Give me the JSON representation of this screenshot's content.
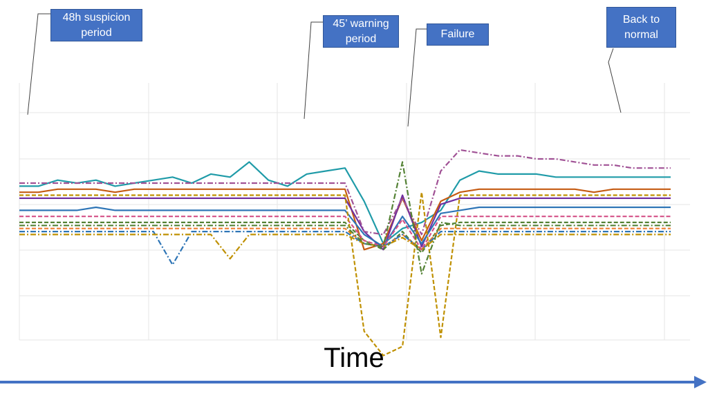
{
  "chart_data": {
    "type": "line",
    "title": "",
    "xlabel": "Time",
    "ylabel": "",
    "grid": true,
    "legend": "none",
    "phases": [
      {
        "name": "suspicion",
        "label": "48h suspicion\nperiod"
      },
      {
        "name": "warning",
        "label": "45’ warning\nperiod"
      },
      {
        "name": "failure",
        "label": "Failure"
      },
      {
        "name": "normal",
        "label": "Back to\nnormal"
      }
    ],
    "series_colors": [
      "#1f9ba8",
      "#c55a11",
      "#7030a0",
      "#2e75b6",
      "#70ad47",
      "#bf9000",
      "#a05195",
      "#d45087",
      "#548235",
      "#ed7d31"
    ],
    "series": [
      {
        "style": "solid",
        "color": "#1f9ba8",
        "values": [
          0.0,
          0.0,
          0.2,
          0.1,
          0.2,
          0.0,
          0.1,
          0.2,
          0.3,
          0.1,
          0.4,
          0.3,
          0.8,
          0.2,
          0.0,
          0.4,
          0.5,
          0.6,
          -0.5,
          -1.9,
          -1.4,
          -1.2,
          -0.8,
          0.2,
          0.5,
          0.4,
          0.4,
          0.4,
          0.3,
          0.3,
          0.3,
          0.3,
          0.3,
          0.3,
          0.3
        ]
      },
      {
        "style": "solid",
        "color": "#c55a11",
        "values": [
          -0.2,
          -0.2,
          -0.1,
          -0.1,
          -0.1,
          -0.2,
          -0.1,
          -0.1,
          -0.1,
          -0.1,
          -0.1,
          -0.1,
          -0.1,
          -0.1,
          -0.1,
          -0.1,
          -0.1,
          -0.1,
          -2.1,
          -1.9,
          -0.4,
          -1.8,
          -0.5,
          -0.2,
          -0.1,
          -0.1,
          -0.1,
          -0.1,
          -0.1,
          -0.1,
          -0.2,
          -0.1,
          -0.1,
          -0.1,
          -0.1
        ]
      },
      {
        "style": "solid",
        "color": "#7030a0",
        "values": [
          -0.4,
          -0.4,
          -0.4,
          -0.4,
          -0.4,
          -0.4,
          -0.4,
          -0.4,
          -0.4,
          -0.4,
          -0.4,
          -0.4,
          -0.4,
          -0.4,
          -0.4,
          -0.4,
          -0.4,
          -0.4,
          -1.5,
          -2.1,
          -0.3,
          -2.0,
          -0.6,
          -0.4,
          -0.4,
          -0.4,
          -0.4,
          -0.4,
          -0.4,
          -0.4,
          -0.4,
          -0.4,
          -0.4,
          -0.4,
          -0.4
        ]
      },
      {
        "style": "solid",
        "color": "#2e75b6",
        "values": [
          -0.8,
          -0.8,
          -0.8,
          -0.8,
          -0.7,
          -0.8,
          -0.8,
          -0.8,
          -0.8,
          -0.8,
          -0.8,
          -0.8,
          -0.8,
          -0.8,
          -0.8,
          -0.8,
          -0.8,
          -0.8,
          -1.6,
          -2.0,
          -1.0,
          -1.9,
          -0.9,
          -0.8,
          -0.7,
          -0.7,
          -0.7,
          -0.7,
          -0.7,
          -0.7,
          -0.7,
          -0.7,
          -0.7,
          -0.7,
          -0.7
        ]
      },
      {
        "style": "dash",
        "color": "#548235",
        "values": [
          -1.2,
          -1.2,
          -1.2,
          -1.2,
          -1.2,
          -1.2,
          -1.2,
          -1.2,
          -1.2,
          -1.2,
          -1.2,
          -1.2,
          -1.2,
          -1.2,
          -1.2,
          -1.2,
          -1.2,
          -1.2,
          -1.8,
          -2.1,
          -1.5,
          -2.2,
          -1.3,
          -1.2,
          -1.2,
          -1.2,
          -1.2,
          -1.2,
          -1.2,
          -1.2,
          -1.2,
          -1.2,
          -1.2,
          -1.2,
          -1.2
        ]
      },
      {
        "style": "dash",
        "color": "#ed7d31",
        "values": [
          -1.4,
          -1.4,
          -1.4,
          -1.4,
          -1.4,
          -1.4,
          -1.4,
          -1.4,
          -1.4,
          -1.4,
          -1.4,
          -1.4,
          -1.4,
          -1.4,
          -1.4,
          -1.4,
          -1.4,
          -1.4,
          -1.9,
          -2.0,
          -1.6,
          -2.1,
          -1.4,
          -1.4,
          -1.4,
          -1.4,
          -1.4,
          -1.4,
          -1.4,
          -1.4,
          -1.4,
          -1.4,
          -1.4,
          -1.4,
          -1.4
        ]
      },
      {
        "style": "dashdot",
        "color": "#2e75b6",
        "values": [
          -1.5,
          -1.5,
          -1.5,
          -1.5,
          -1.5,
          -1.5,
          -1.5,
          -1.5,
          -2.6,
          -1.5,
          -1.5,
          -1.5,
          -1.5,
          -1.5,
          -1.5,
          -1.5,
          -1.5,
          -1.5,
          -1.9,
          -2.0,
          -1.6,
          -2.1,
          -1.5,
          -1.5,
          -1.5,
          -1.5,
          -1.5,
          -1.5,
          -1.5,
          -1.5,
          -1.5,
          -1.5,
          -1.5,
          -1.5,
          -1.5
        ]
      },
      {
        "style": "dashdot",
        "color": "#bf9000",
        "values": [
          -1.6,
          -1.6,
          -1.6,
          -1.6,
          -1.6,
          -1.6,
          -1.6,
          -1.6,
          -1.6,
          -1.6,
          -1.6,
          -2.4,
          -1.6,
          -1.6,
          -1.6,
          -1.6,
          -1.6,
          -1.6,
          -1.9,
          -2.0,
          -1.7,
          -2.1,
          -1.6,
          -1.6,
          -1.6,
          -1.6,
          -1.6,
          -1.6,
          -1.6,
          -1.6,
          -1.6,
          -1.6,
          -1.6,
          -1.6,
          -1.6
        ]
      },
      {
        "style": "dashdot",
        "color": "#a05195",
        "values": [
          0.1,
          0.1,
          0.1,
          0.1,
          0.1,
          0.1,
          0.1,
          0.1,
          0.1,
          0.1,
          0.1,
          0.1,
          0.1,
          0.1,
          0.1,
          0.1,
          0.1,
          0.1,
          -1.5,
          -1.6,
          -0.4,
          -1.6,
          0.5,
          1.2,
          1.1,
          1.0,
          1.0,
          0.9,
          0.9,
          0.8,
          0.7,
          0.7,
          0.6,
          0.6,
          0.6
        ]
      },
      {
        "style": "dash",
        "color": "#d45087",
        "values": [
          -1.0,
          -1.0,
          -1.0,
          -1.0,
          -1.0,
          -1.0,
          -1.0,
          -1.0,
          -1.0,
          -1.0,
          -1.0,
          -1.0,
          -1.0,
          -1.0,
          -1.0,
          -1.0,
          -1.0,
          -1.0,
          -1.8,
          -2.0,
          -1.1,
          -2.1,
          -1.0,
          -1.0,
          -1.0,
          -1.0,
          -1.0,
          -1.0,
          -1.0,
          -1.0,
          -1.0,
          -1.0,
          -1.0,
          -1.0,
          -1.0
        ]
      },
      {
        "style": "dash",
        "color": "#bf9000",
        "values": [
          -0.3,
          -0.3,
          -0.3,
          -0.3,
          -0.3,
          -0.3,
          -0.3,
          -0.3,
          -0.3,
          -0.3,
          -0.3,
          -0.3,
          -0.3,
          -0.3,
          -0.3,
          -0.3,
          -0.3,
          -0.3,
          -4.8,
          -5.6,
          -5.3,
          -0.2,
          -5.0,
          -0.3,
          -0.3,
          -0.3,
          -0.3,
          -0.3,
          -0.3,
          -0.3,
          -0.3,
          -0.3,
          -0.3,
          -0.3,
          -0.3
        ]
      },
      {
        "style": "dashdot",
        "color": "#548235",
        "values": [
          -1.3,
          -1.3,
          -1.3,
          -1.3,
          -1.3,
          -1.3,
          -1.3,
          -1.3,
          -1.3,
          -1.3,
          -1.3,
          -1.3,
          -1.3,
          -1.3,
          -1.3,
          -1.3,
          -1.3,
          -1.3,
          -1.9,
          -2.0,
          0.8,
          -2.9,
          -1.2,
          -1.3,
          -1.3,
          -1.3,
          -1.3,
          -1.3,
          -1.3,
          -1.3,
          -1.3,
          -1.3,
          -1.3,
          -1.3,
          -1.3
        ]
      }
    ]
  },
  "arrow": {
    "color": "#4472c4"
  }
}
